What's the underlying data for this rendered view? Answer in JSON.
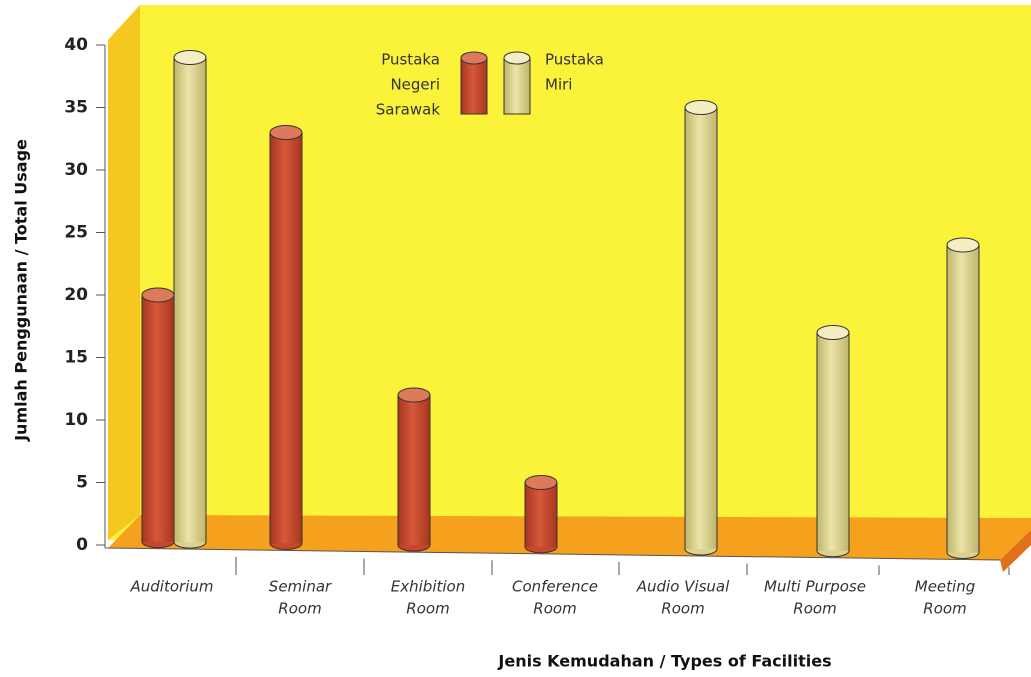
{
  "chart_data": {
    "type": "bar",
    "categories": [
      [
        "Auditorium"
      ],
      [
        "Seminar",
        "Room"
      ],
      [
        "Exhibition",
        "Room"
      ],
      [
        "Conference",
        "Room"
      ],
      [
        "Audio Visual",
        "Room"
      ],
      [
        "Multi Purpose",
        "Room"
      ],
      [
        "Meeting",
        "Room"
      ]
    ],
    "series": [
      {
        "name": [
          "Pustaka",
          "Negeri",
          "Sarawak"
        ],
        "color": "#c8462b",
        "values": [
          20,
          33,
          12,
          5,
          null,
          null,
          null
        ]
      },
      {
        "name": [
          "Pustaka",
          "Miri"
        ],
        "color": "#dcd28e",
        "values": [
          39,
          null,
          null,
          null,
          35,
          17,
          24
        ]
      }
    ],
    "ylim": [
      0,
      40
    ],
    "yticks": [
      0,
      5,
      10,
      15,
      20,
      25,
      30,
      35,
      40
    ],
    "xlabel": "Jenis Kemudahan / Types of Facilities",
    "ylabel": "Jumlah Penggunaan / Total Usage"
  }
}
